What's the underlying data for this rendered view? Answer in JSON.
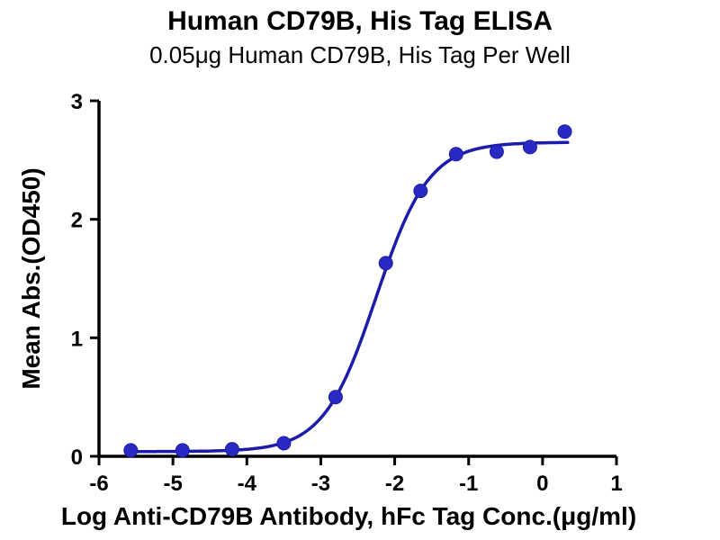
{
  "chart_data": {
    "type": "scatter",
    "title": "Human CD79B, His Tag ELISA",
    "subtitle": "0.05μg Human CD79B, His Tag Per Well",
    "xlabel": "Log Anti-CD79B Antibody, hFc Tag Conc.(μg/ml)",
    "ylabel": "Mean Abs.(OD450)",
    "xlim": [
      -6,
      1
    ],
    "ylim": [
      0,
      3
    ],
    "x_ticks": [
      -6,
      -5,
      -4,
      -3,
      -2,
      -1,
      0,
      1
    ],
    "y_ticks": [
      0,
      1,
      2,
      3
    ],
    "grid": false,
    "legend": "none",
    "points": [
      {
        "x": -5.57,
        "y": 0.05
      },
      {
        "x": -4.87,
        "y": 0.05
      },
      {
        "x": -4.2,
        "y": 0.06
      },
      {
        "x": -3.5,
        "y": 0.11
      },
      {
        "x": -2.8,
        "y": 0.5
      },
      {
        "x": -2.12,
        "y": 1.63
      },
      {
        "x": -1.65,
        "y": 2.24
      },
      {
        "x": -1.17,
        "y": 2.55
      },
      {
        "x": -0.62,
        "y": 2.57
      },
      {
        "x": -0.17,
        "y": 2.61
      },
      {
        "x": 0.3,
        "y": 2.74
      }
    ],
    "fit": {
      "model": "4PL",
      "bottom": 0.04,
      "top": 2.65,
      "logEC50": -2.25,
      "hill": 1.22
    },
    "curve_range": [
      -5.6,
      0.34
    ],
    "colors": {
      "curve": "#1c1caa",
      "point": "#2a2ac2",
      "point_stroke": "#1c1caa",
      "axis": "#000000",
      "text": "#000000"
    }
  }
}
